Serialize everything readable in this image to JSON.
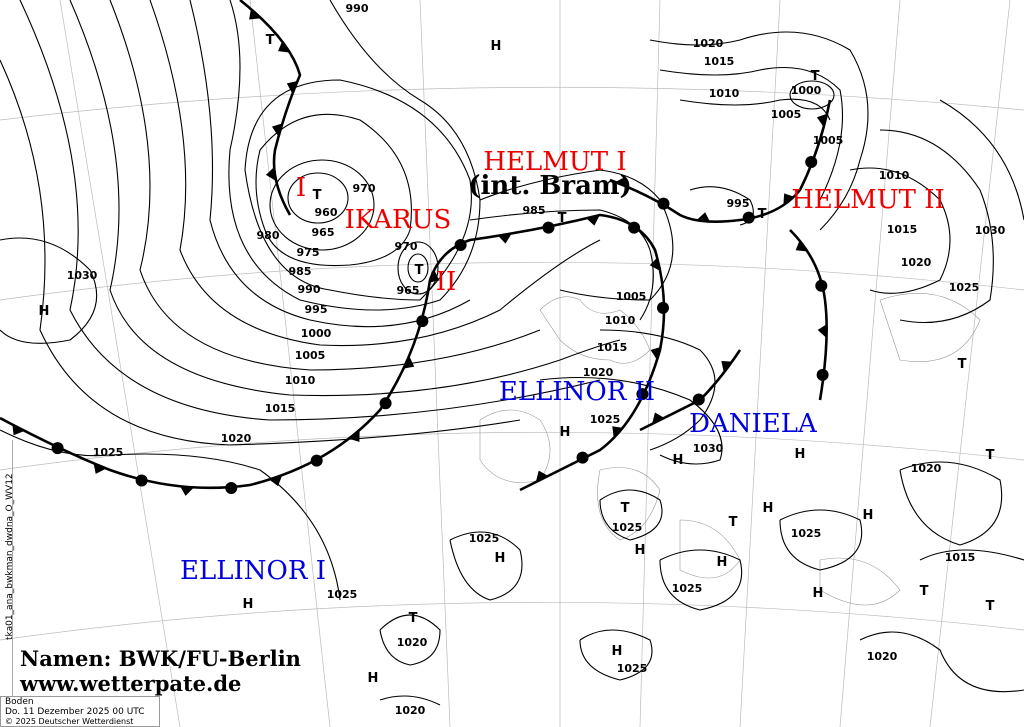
{
  "map": {
    "product_id": "tka01_ana_bwkman_dwdna_O_WV12",
    "level": "Boden",
    "valid_time": "Do. 11 Dezember 2025 00 UTC",
    "copyright": "© 2025 Deutscher Wetterdienst",
    "credit_line1": "Namen: BWK/FU-Berlin",
    "credit_line2": "www.wetterpate.de",
    "colors": {
      "high_name": "#0000dd",
      "low_name": "#ee0000",
      "isobar": "#000000",
      "front": "#000000"
    },
    "system_names": [
      {
        "label": "HELMUT I",
        "color": "#ee0000"
      },
      {
        "label": "(int. Bram)",
        "color": "#000000"
      },
      {
        "label": "IKARUS",
        "color": "#ee0000"
      },
      {
        "label": "I",
        "color": "#ee0000"
      },
      {
        "label": "II",
        "color": "#ee0000"
      },
      {
        "label": "HELMUT II",
        "color": "#ee0000"
      },
      {
        "label": "ELLINOR II",
        "color": "#0000dd"
      },
      {
        "label": "DANIELA",
        "color": "#0000dd"
      },
      {
        "label": "ELLINOR I",
        "color": "#0000dd"
      }
    ],
    "pressure_centers": [
      "H",
      "T",
      "T",
      "H",
      "T",
      "T",
      "T",
      "T",
      "H",
      "H",
      "H",
      "T",
      "H",
      "T",
      "H",
      "H",
      "H",
      "H",
      "H",
      "T",
      "H",
      "H",
      "H",
      "T",
      "T",
      "T",
      "T"
    ],
    "isobar_labels": [
      "990",
      "970",
      "960",
      "965",
      "980",
      "975",
      "985",
      "990",
      "995",
      "1000",
      "1005",
      "1010",
      "1015",
      "1020",
      "1025",
      "1030",
      "970",
      "965",
      "985",
      "1020",
      "1015",
      "1010",
      "1005",
      "1000",
      "1005",
      "995",
      "1010",
      "1015",
      "1020",
      "1025",
      "1030",
      "1005",
      "1010",
      "1015",
      "1020",
      "1025",
      "1030",
      "1020",
      "1025",
      "1015",
      "1025",
      "1025",
      "1025",
      "1025",
      "1020",
      "1025",
      "1020",
      "1020"
    ]
  }
}
